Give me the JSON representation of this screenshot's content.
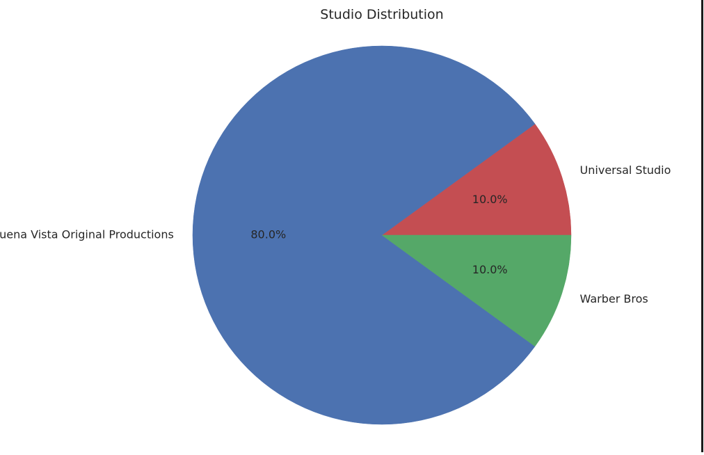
{
  "chart_data": {
    "type": "pie",
    "title": "Studio Distribution",
    "labels": [
      "Universal Studio",
      "Buena Vista Original Productions",
      "Warber Bros"
    ],
    "values": [
      10.0,
      80.0,
      10.0
    ],
    "percent_labels": [
      "10.0%",
      "80.0%",
      "10.0%"
    ],
    "colors": [
      "#c44e52",
      "#4c72b0",
      "#55a868"
    ],
    "start_angle_deg": 0,
    "direction": "counterclockwise",
    "legend": "none"
  }
}
